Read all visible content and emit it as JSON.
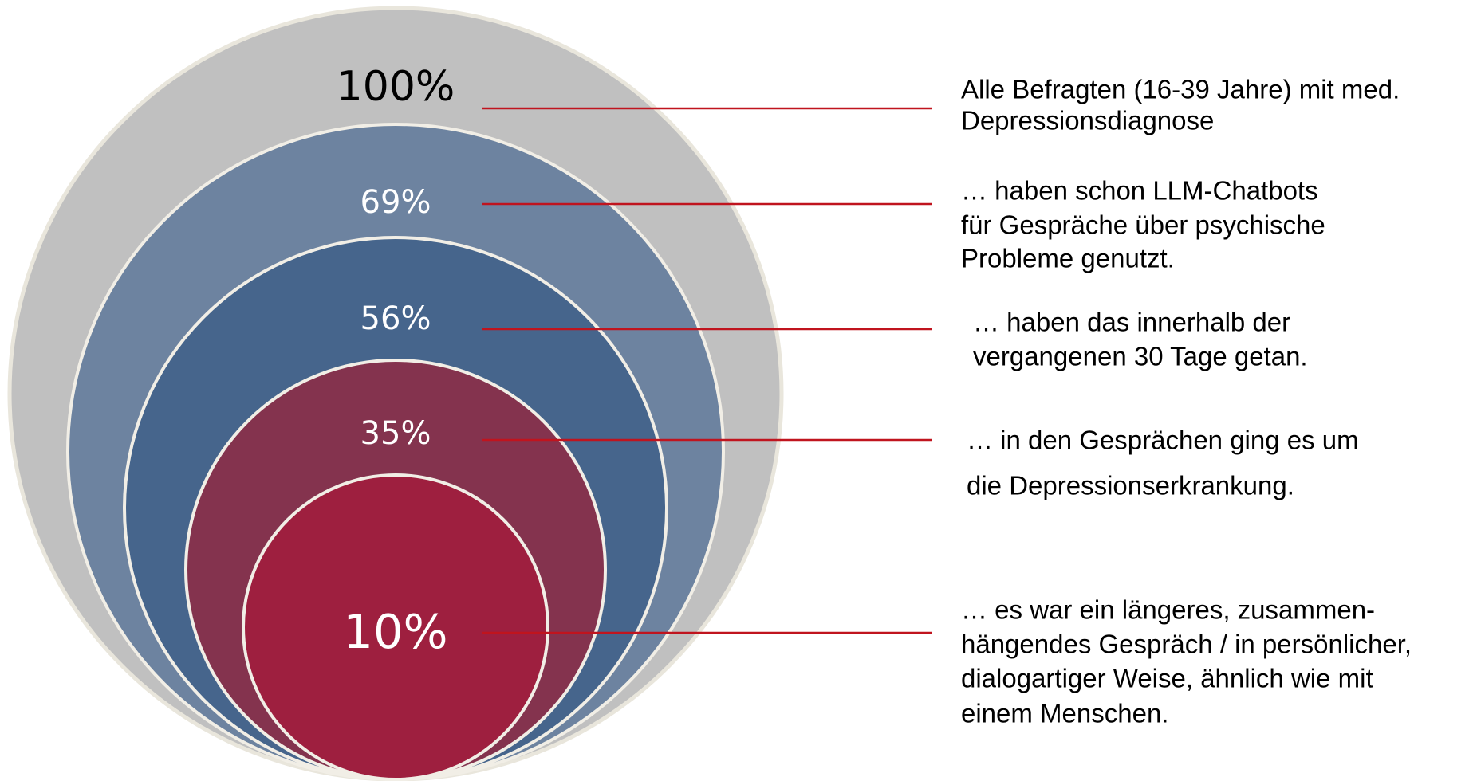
{
  "chart_data": {
    "type": "nested-circles",
    "values": [
      100,
      69,
      56,
      35,
      10
    ],
    "value_labels": [
      "100%",
      "69%",
      "56%",
      "35%",
      "10%"
    ],
    "categories": [
      [
        "Alle Befragten (16-39 Jahre)  mit med.",
        "Depressionsdiagnose"
      ],
      [
        "… haben schon LLM-Chatbots",
        "für Gespräche über psychische",
        "Probleme genutzt."
      ],
      [
        "… haben das innerhalb der",
        "vergangenen 30 Tage getan."
      ],
      [
        "… in den Gesprächen ging es um",
        "die Depressionserkrankung."
      ],
      [
        "… es war ein längeres, zusammen-",
        "hängendes Gespräch / in persönlicher,",
        "dialogartiger Weise, ähnlich wie mit",
        "einem Menschen."
      ]
    ],
    "colors": [
      "#c0c0c0",
      "#6d83a0",
      "#46658c",
      "#84334e",
      "#9e1f3f"
    ],
    "label_colors": [
      "#000000",
      "#ffffff",
      "#ffffff",
      "#ffffff",
      "#ffffff"
    ],
    "line_color": "#c0141e"
  }
}
